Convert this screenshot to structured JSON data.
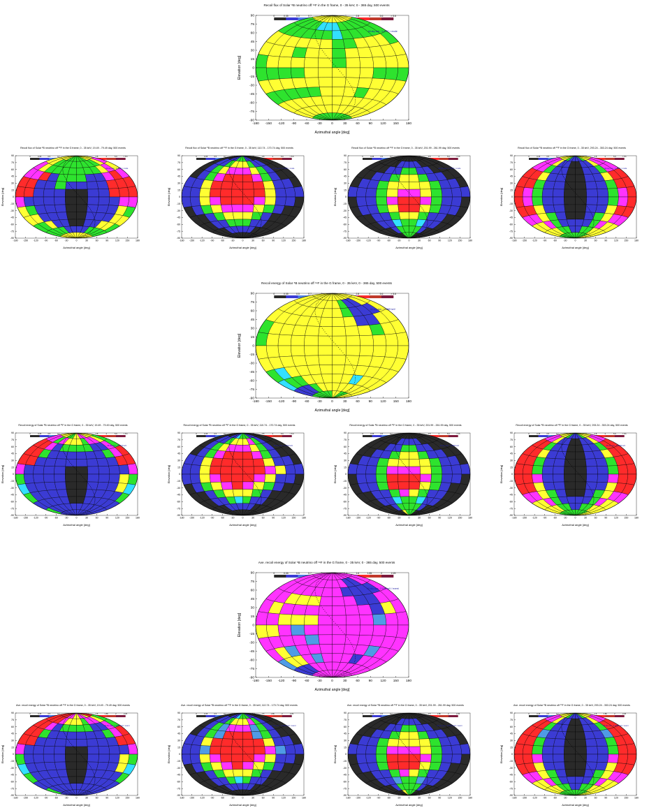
{
  "figure": {
    "axis_common": {
      "xlabel": "Azimuthal angle [deg]",
      "ylabel": "Elevation [deg]",
      "xticks": [
        "-180",
        "-150",
        "-120",
        "-90",
        "-60",
        "-30",
        "0",
        "30",
        "60",
        "90",
        "120",
        "150",
        "180"
      ],
      "yticks": [
        "90",
        "75",
        "60",
        "45",
        "30",
        "15",
        "0",
        "-15",
        "-30",
        "-45",
        "-60",
        "-75",
        "-90"
      ]
    },
    "scales": {
      "linear": {
        "labels": [
          "0",
          "0.35",
          "0.5",
          "0.7",
          "1",
          "1.4",
          "2",
          "2.8",
          "4",
          "5.6",
          "> 5.6"
        ],
        "colors": [
          "#2a2a2a",
          "#3b3bd4",
          "#4f7fe6",
          "#33e0ff",
          "#2ee32e",
          "#ffff33",
          "#ff33ff",
          "#ff2b2b",
          "#c0392b",
          "#7d1a3d"
        ]
      },
      "ave": {
        "labels": [
          "0",
          "0.35",
          "0.5",
          "0.7",
          "1",
          "1.25",
          "1.4",
          "1.6",
          "1.85",
          "2",
          "2.25"
        ],
        "colors": [
          "#2a2a2a",
          "#3b3bd4",
          "#4f7fe6",
          "#33e0ff",
          "#2ee32e",
          "#ffff33",
          "#ff33ff",
          "#ff2b2b",
          "#c0392b",
          "#7d1a3d"
        ]
      }
    }
  },
  "chart_data": [
    {
      "id": "flux-total",
      "type": "heatmap",
      "scale": "linear",
      "title": "Recoil flux of Solar ⁸B neutrino off ¹⁹F in the G frame, 0 - 35 keV, 0 - 365 day, 500 events",
      "annotation": "All-sky ave.: 3.4702 × mode",
      "big": true,
      "cells": [
        "yyyyyyyyyyyy",
        "ggggcccggggg",
        "ggggggcggggg",
        "yyyyyyggyyyg",
        "yyygyygyyyyy",
        "gyyyyygyyyyy",
        "ggggyyyyyggg",
        "yyyyyyyyyyyy",
        "gggggyyygyyy",
        "yyyyyyyyyyyy",
        "yyyyyyyyyyyy",
        "gggggggggggg"
      ]
    },
    {
      "id": "flux-q1",
      "type": "heatmap",
      "scale": "linear",
      "title": "Recoil flux of Solar ⁸B neutrino off ¹⁹F in the G frame, 0 - 35 keV, 19.49 - 79.49 day, 500 events",
      "annotation": "All-sky ave.: 4.6945 × mode",
      "cells": [
        "yyyggggggyyy",
        "yyggggggggym",
        "mygggggggymy",
        "mmrbgggbbmrm",
        "rrbbgbbbbrrr",
        "rrbbbkkbbrrr",
        "mbbbbkkbbbmm",
        "ygbbbkkbbbyg",
        "yybbbkkbbbyy",
        "ggybbkkbbyyg",
        "ggggbbbbgggg",
        "yyyyyyyyyyyy"
      ]
    },
    {
      "id": "flux-q2",
      "type": "heatmap",
      "scale": "linear",
      "title": "Recoil flux of Solar ⁸B neutrino off ¹⁹F in the G frame, 0 - 35 keV, 110.74 - 170.74 day, 500 events",
      "annotation": "All-sky ave.: 4.0345 × mode",
      "cells": [
        "kkbbgggbbkkk",
        "kbbgyyygbbkk",
        "kbgymmmygbkk",
        "kbgmrrrmgbkk",
        "bbyrrrrrybbk",
        "bbyrrrrrybbb",
        "bbymrrrmybbk",
        "kbgymmmygbkk",
        "kkbgyyygbkkk",
        "kkbbgggbbkkk",
        "kkkbbbbbkkkk",
        "kkkkkkkkkkkk"
      ]
    },
    {
      "id": "flux-q3",
      "type": "heatmap",
      "scale": "linear",
      "title": "Recoil flux of Solar ⁸B neutrino off ¹⁹F in the G frame, 0 - 35 keV, 201.99 - 261.99 day, 500 events",
      "annotation": "All-sky ave.: 4.0955 × mode",
      "cells": [
        "kkkkkkkkkkkk",
        "kkkkbbbbkkkk",
        "kkkbbggbbkkk",
        "kkbbgyygbbkk",
        "kbbgyyyygbbk",
        "bbbgymmygbbb",
        "kbbgmrrmgbbk",
        "kbbgyrrygbbk",
        "kkbbgyygbbkk",
        "kkbbcggcbbkk",
        "kkkbggggbkkk",
        "kkkkggggkkkk"
      ]
    },
    {
      "id": "flux-q4",
      "type": "heatmap",
      "scale": "linear",
      "title": "Recoil flux of Solar ⁸B neutrino off ¹⁹F in the G frame, 0 - 35 keV, 293.24 - 353.24 day, 500 events",
      "annotation": "All-sky ave.: 4.4686 × mode",
      "cells": [
        "yyygbbbbgyyy",
        "mmybbkkbbymm",
        "mmgbbkkbbgmm",
        "rrybbkkbbyrr",
        "rrgbbkkbbgrr",
        "rmgbbkkbbgmr",
        "rmgbbkkbbgmr",
        "rrybbkkbbyrr",
        "mmygbkkbgymm",
        "yymgbbbbgmyy",
        "yyyggbbggyyy",
        "ggggggggggyy"
      ]
    },
    {
      "id": "energy-total",
      "type": "heatmap",
      "scale": "linear",
      "title": "Recoil energy of Solar ⁸B neutrino off ¹⁹F in the G frame, 0 - 35 keV, 0 - 365 day, 500 events",
      "annotation": "All-sky ave.: 7.0669 keV",
      "big": true,
      "cells": [
        "yyyyyyyyyyyy",
        "yyyyyyygbbyy",
        "yyyyyyygbbby",
        "yyyyyyyybbyy",
        "gyyyyyyyygyy",
        "gyyyyyyyyyyy",
        "yyyyyyyyyyyy",
        "yyyyyyyyyyyy",
        "gcyyyyyyyyyy",
        "cggyyyyycyyy",
        "bbbgyyyyyyyy",
        "ggggggyyggyy"
      ]
    },
    {
      "id": "energy-q1",
      "type": "heatmap",
      "scale": "linear",
      "title": "Recoil energy of Solar ⁸B neutrino off ¹⁹F in the G frame, 0 - 35 keV, 19.49 - 79.49 day, 500 events",
      "annotation": "All-sky ave.: 10.473 keV",
      "cells": [
        "yyyggyymmyyy",
        "mmgmyyygmmyg",
        "rrmbggggbbmg",
        "rrgbbbbbbgmr",
        "rrbbbbbbbbrr",
        "mbbbbkkbbbbm",
        "gbbbbkkbbbyg",
        "cbbbbkkbbbyc",
        "gbbbbkkbbbbg",
        "bbbbbkkbbbbb",
        "gbbbbbbbbbbb",
        "bbbbbbbbbbbb"
      ]
    },
    {
      "id": "energy-q2",
      "type": "heatmap",
      "scale": "linear",
      "title": "Recoil energy of Solar ⁸B neutrino off ¹⁹F in the G frame, 0 - 35 keV, 110.74 - 170.74 day, 500 events",
      "annotation": "All-sky ave.: 9.1564 keV",
      "cells": [
        "kkbbcgggbbkk",
        "kbbgyyymgbkk",
        "kbgymmmygbkk",
        "kbgmrrrmgbkk",
        "bbyrrrrrybbk",
        "bbyrrrrrmybb",
        "bbymrrrmybbk",
        "kbgymrmygbkk",
        "kkbgyyygbkkk",
        "kkbbgcgbbkkk",
        "kkkbbbbbkkkk",
        "kkkkkkkkkkkk"
      ]
    },
    {
      "id": "energy-q3",
      "type": "heatmap",
      "scale": "linear",
      "title": "Recoil energy of Solar ⁸B neutrino off ¹⁹F in the G frame, 0 - 35 keV, 201.99 - 261.99 day, 500 events",
      "annotation": "All-sky ave.: 9.8882 keV",
      "cells": [
        "kkkkkkkkkkkk",
        "kkkkbbbbkkkk",
        "kkkbbggbbkkk",
        "kkbbgyygbbkk",
        "kbbgyyyygbbk",
        "bbbgmmmygbbb",
        "kbbgrrrmgbbk",
        "kbbgrrrygbkk",
        "kkbbgmygbbkk",
        "kkbbcggcbbkk",
        "kkkbggggbkkk",
        "kkkkygggkkkk"
      ]
    },
    {
      "id": "energy-q4",
      "type": "heatmap",
      "scale": "linear",
      "title": "Recoil energy of Solar ⁸B neutrino off ¹⁹F in the G frame, 0 - 35 keV, 293.24 - 353.24 day, 500 events",
      "annotation": "All-sky ave.: 8.9982 keV",
      "cells": [
        "yyygbbbbgyyy",
        "mmybbkkbbymm",
        "rrgbbkkbbgrr",
        "rrybbkkbbyrr",
        "rrgbbkkbbgrr",
        "rrgbbkkbbgrr",
        "rrmbbkkbbmrr",
        "rrybbkkbbyrr",
        "mmygbkkbgymm",
        "yymgbbbbgmyy",
        "yyyggbbggyyy",
        "ggggggggggyy"
      ]
    },
    {
      "id": "ave-total",
      "type": "heatmap",
      "scale": "ave",
      "title": "Ave. recoil energy of Solar ⁸B neutrino off ¹⁹F in the G frame, 0 - 35 keV, 0 - 365 day, 500 events",
      "annotation": "All-sky ave.: 2.036 keV / event",
      "big": true,
      "cells": [
        "mmmmmmmmmmmm",
        "mmmmmmmmbbmm",
        "mmmmmmmbbbbm",
        "mmyyymmmbbmm",
        "mymmmmmmmbym",
        "mmyyymmmmlmm",
        "yymlmmmmmmmm",
        "mmmmlmmmmmmm",
        "mylmmmmmmlmm",
        "lyymlmmmbmmm",
        "bbbmmmmmmmmm",
        "mmmmmmmmmmmm"
      ]
    },
    {
      "id": "ave-q1",
      "type": "heatmap",
      "scale": "ave",
      "title": "Ave. recoil energy of Solar ⁸B neutrino off ¹⁹F in the G frame, 0 - 35 keV, 19.49 - 79.49 day, 500 events",
      "annotation": "All-sky ave.: 2.4053 keV / event",
      "cells": [
        "rrrmmyymmyrr",
        "rrrmyyygmmyg",
        "rrmbggggbbmg",
        "rrgbbbbbbgmr",
        "rrbbbbbbbbrr",
        "mbbbbkkbbbbm",
        "gbbbbkkbbbyg",
        "cbbbbkkbbbyc",
        "gbbbbkkbbbbg",
        "bbbbbkkbbbbb",
        "gbbbbbbbbbbb",
        "bbbbbbbbbbbb"
      ]
    },
    {
      "id": "ave-q2",
      "type": "heatmap",
      "scale": "ave",
      "title": "Ave. recoil energy of Solar ⁸B neutrino off ¹⁹F in the G frame, 0 - 35 keV, 110.74 - 170.74 day, 500 events",
      "annotation": "All-sky ave.: 2.0348 keV / event",
      "cells": [
        "kkbbcgggbbkk",
        "kbbgyyymgbkk",
        "kbglmmmlgbkk",
        "kbglrrrlgbkk",
        "bbyrrrrrybbk",
        "bblrrrrrmlbb",
        "bbymrrrmybbk",
        "kbgymrmygbkk",
        "kkbgyyygbkkk",
        "kkbbgcgbbkkk",
        "kkkbbbbbkkkk",
        "kkkkkkkkkkkk"
      ]
    },
    {
      "id": "ave-q3",
      "type": "heatmap",
      "scale": "ave",
      "title": "Ave. recoil energy of Solar ⁸B neutrino off ¹⁹F in the G frame, 0 - 35 keV, 201.99 - 261.99 day, 500 events",
      "annotation": "All-sky ave.: 2.0093 keV / event",
      "cells": [
        "kkkkkkkkkkkk",
        "kkkkbbbbkkkk",
        "kkkbbggbbkkk",
        "kkbbgyygbbkk",
        "kbbgyyyygbbk",
        "bbbgmmmygbbb",
        "kbbgrrrmgbbk",
        "kbbgrrrygbkk",
        "kkbbgmygbbkk",
        "kkbblgglbbkk",
        "kkkbggggbkkk",
        "kkkkygggkkkk"
      ]
    },
    {
      "id": "ave-q4",
      "type": "heatmap",
      "scale": "ave",
      "title": "Ave. recoil energy of Solar ⁸B neutrino off ¹⁹F in the G frame, 0 - 35 keV, 293.24 - 353.24 day, 500 events",
      "annotation": "All-sky ave.: 2.0082 keV / event",
      "cells": [
        "yyygbbbbgyyy",
        "mmybbkkbbymm",
        "rrgbbkkbbgrr",
        "rrlbbkkbblrr",
        "rrgbbkkbbgrr",
        "rrgbbkkbbgrr",
        "rrmbbkkbbmrr",
        "rrybbkkbbyrr",
        "mmygbkkbgymm",
        "yymgbbbbgmyy",
        "yyyggbbggyyy",
        "ggggggggggyy"
      ]
    }
  ],
  "color_codes": {
    "k": "#2a2a2a",
    "b": "#3b3bd4",
    "l": "#4f9be6",
    "c": "#33e0ff",
    "g": "#2ee32e",
    "y": "#ffff33",
    "m": "#ff33ff",
    "r": "#ff2b2b"
  }
}
